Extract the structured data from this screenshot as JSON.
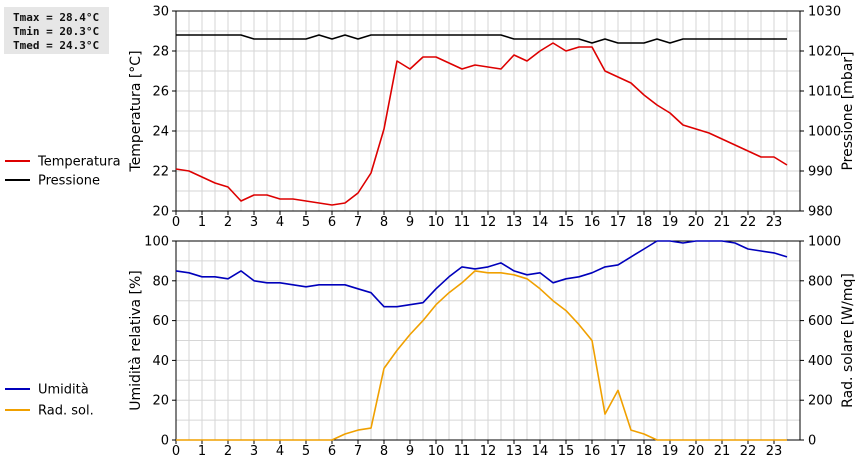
{
  "stats": {
    "tmax": "Tmax = 28.4°C",
    "tmin": "Tmin = 20.3°C",
    "tmed": "Tmed = 24.3°C"
  },
  "chart_data": [
    {
      "type": "line",
      "x_ticks": [
        "0",
        "1",
        "2",
        "3",
        "4",
        "5",
        "6",
        "7",
        "8",
        "9",
        "10",
        "11",
        "12",
        "13",
        "14",
        "15",
        "16",
        "17",
        "18",
        "19",
        "20",
        "21",
        "22",
        "23"
      ],
      "xlim": [
        0,
        24
      ],
      "grid": true,
      "ylabel_left": "Temperatura [°C]",
      "ylabel_right": "Pressione [mbar]",
      "ylim_left": [
        20,
        30
      ],
      "ylim_right": [
        980,
        1030
      ],
      "yticks_left": [
        "20",
        "22",
        "24",
        "26",
        "28",
        "30"
      ],
      "yticks_right": [
        "980",
        "990",
        "1000",
        "1010",
        "1020",
        "1030"
      ],
      "legend_position": "left",
      "series": [
        {
          "name": "Temperatura",
          "axis": "left",
          "color": "#dd0000",
          "x": [
            0,
            0.5,
            1,
            1.5,
            2,
            2.5,
            3,
            3.5,
            4,
            4.5,
            5,
            5.5,
            6,
            6.5,
            7,
            7.5,
            8,
            8.5,
            9,
            9.5,
            10,
            10.5,
            11,
            11.5,
            12,
            12.5,
            13,
            13.5,
            14,
            14.5,
            15,
            15.5,
            16,
            16.5,
            17,
            17.5,
            18,
            18.5,
            19,
            19.5,
            20,
            20.5,
            21,
            21.5,
            22,
            22.5,
            23,
            23.5
          ],
          "values": [
            22.1,
            22.0,
            21.7,
            21.4,
            21.2,
            20.5,
            20.8,
            20.8,
            20.6,
            20.6,
            20.5,
            20.4,
            20.3,
            20.4,
            20.9,
            21.9,
            24.1,
            27.5,
            27.1,
            27.7,
            27.7,
            27.4,
            27.1,
            27.3,
            27.2,
            27.1,
            27.8,
            27.5,
            28.0,
            28.4,
            28.0,
            28.2,
            28.2,
            27.0,
            26.7,
            26.4,
            25.8,
            25.3,
            24.9,
            24.3,
            24.1,
            23.9,
            23.6,
            23.3,
            23.0,
            22.7,
            22.7,
            22.3
          ]
        },
        {
          "name": "Pressione",
          "axis": "right",
          "color": "#000000",
          "x": [
            0,
            0.5,
            1,
            1.5,
            2,
            2.5,
            3,
            3.5,
            4,
            4.5,
            5,
            5.5,
            6,
            6.5,
            7,
            7.5,
            8,
            8.5,
            9,
            9.5,
            10,
            10.5,
            11,
            11.5,
            12,
            12.5,
            13,
            13.5,
            14,
            14.5,
            15,
            15.5,
            16,
            16.5,
            17,
            17.5,
            18,
            18.5,
            19,
            19.5,
            20,
            20.5,
            21,
            21.5,
            22,
            22.5,
            23,
            23.5
          ],
          "values": [
            1024,
            1024,
            1024,
            1024,
            1024,
            1024,
            1023,
            1023,
            1023,
            1023,
            1023,
            1024,
            1023,
            1024,
            1023,
            1024,
            1024,
            1024,
            1024,
            1024,
            1024,
            1024,
            1024,
            1024,
            1024,
            1024,
            1023,
            1023,
            1023,
            1023,
            1023,
            1023,
            1022,
            1023,
            1022,
            1022,
            1022,
            1023,
            1022,
            1023,
            1023,
            1023,
            1023,
            1023,
            1023,
            1023,
            1023,
            1023
          ]
        }
      ]
    },
    {
      "type": "line",
      "x_ticks": [
        "0",
        "1",
        "2",
        "3",
        "4",
        "5",
        "6",
        "7",
        "8",
        "9",
        "10",
        "11",
        "12",
        "13",
        "14",
        "15",
        "16",
        "17",
        "18",
        "19",
        "20",
        "21",
        "22",
        "23"
      ],
      "xlim": [
        0,
        24
      ],
      "grid": true,
      "ylabel_left": "Umidità relativa [%]",
      "ylabel_right": "Rad. solare [W/mq]",
      "ylim_left": [
        0,
        100
      ],
      "ylim_right": [
        0,
        1000
      ],
      "yticks_left": [
        "0",
        "20",
        "40",
        "60",
        "80",
        "100"
      ],
      "yticks_right": [
        "0",
        "200",
        "400",
        "600",
        "800",
        "1000"
      ],
      "legend_position": "left",
      "series": [
        {
          "name": "Umidità",
          "axis": "left",
          "color": "#0000bb",
          "x": [
            0,
            0.5,
            1,
            1.5,
            2,
            2.5,
            3,
            3.5,
            4,
            4.5,
            5,
            5.5,
            6,
            6.5,
            7,
            7.5,
            8,
            8.5,
            9,
            9.5,
            10,
            10.5,
            11,
            11.5,
            12,
            12.5,
            13,
            13.5,
            14,
            14.5,
            15,
            15.5,
            16,
            16.5,
            17,
            17.5,
            18,
            18.5,
            19,
            19.5,
            20,
            20.5,
            21,
            21.5,
            22,
            22.5,
            23,
            23.5
          ],
          "values": [
            85,
            84,
            82,
            82,
            81,
            85,
            80,
            79,
            79,
            78,
            77,
            78,
            78,
            78,
            76,
            74,
            67,
            67,
            68,
            69,
            76,
            82,
            87,
            86,
            87,
            89,
            85,
            83,
            84,
            79,
            81,
            82,
            84,
            87,
            88,
            92,
            96,
            100,
            100,
            99,
            100,
            100,
            100,
            99,
            96,
            95,
            94,
            92
          ]
        },
        {
          "name": "Rad. sol.",
          "axis": "right",
          "color": "#f0a000",
          "x": [
            0,
            0.5,
            1,
            1.5,
            2,
            2.5,
            3,
            3.5,
            4,
            4.5,
            5,
            5.5,
            6,
            6.5,
            7,
            7.5,
            8,
            8.5,
            9,
            9.5,
            10,
            10.5,
            11,
            11.5,
            12,
            12.5,
            13,
            13.5,
            14,
            14.5,
            15,
            15.5,
            16,
            16.5,
            17,
            17.5,
            18,
            18.5,
            19,
            19.5,
            20,
            20.5,
            21,
            21.5,
            22,
            22.5,
            23,
            23.5
          ],
          "values": [
            0,
            0,
            0,
            0,
            0,
            0,
            0,
            0,
            0,
            0,
            0,
            0,
            0,
            30,
            50,
            60,
            360,
            450,
            530,
            600,
            680,
            740,
            790,
            850,
            840,
            840,
            830,
            810,
            760,
            700,
            650,
            580,
            500,
            130,
            250,
            50,
            30,
            0,
            0,
            0,
            0,
            0,
            0,
            0,
            0,
            0,
            0,
            0
          ]
        }
      ]
    }
  ]
}
